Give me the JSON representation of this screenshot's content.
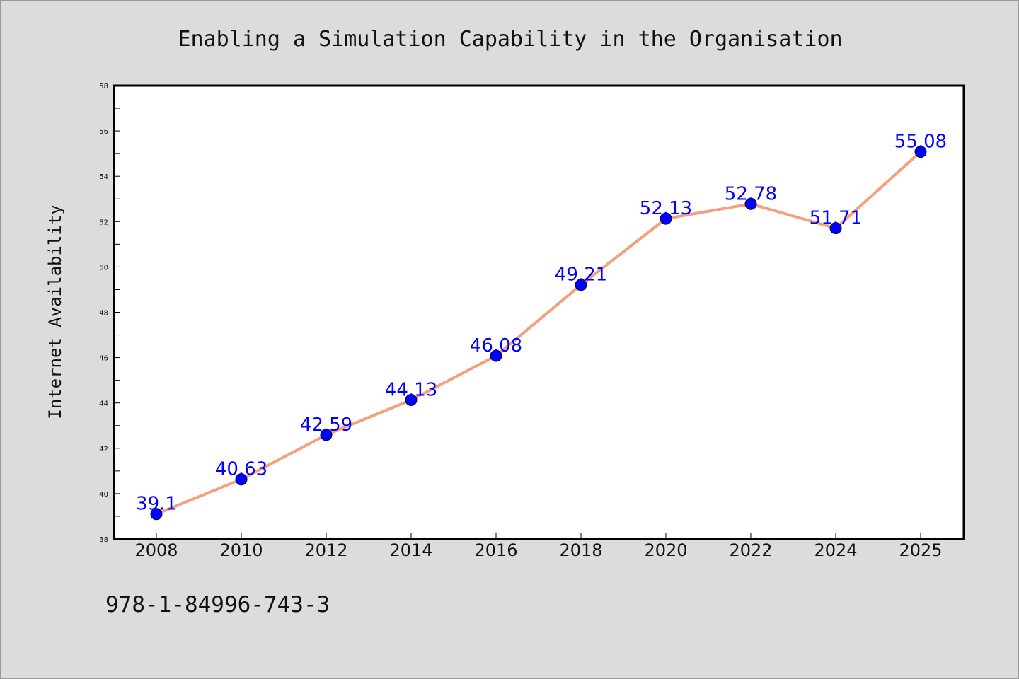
{
  "chart_data": {
    "type": "line",
    "title": "Enabling a Simulation Capability in the Organisation",
    "xlabel": "",
    "ylabel": "Internet Availability",
    "categories": [
      "2008",
      "2010",
      "2012",
      "2014",
      "2016",
      "2018",
      "2020",
      "2022",
      "2024",
      "2025"
    ],
    "series": [
      {
        "values": [
          39.1,
          40.63,
          42.59,
          44.13,
          46.08,
          49.21,
          52.13,
          52.78,
          51.71,
          55.08
        ],
        "data_labels": [
          "39.1",
          "40.63",
          "42.59",
          "44.13",
          "46.08",
          "49.21",
          "52.13",
          "52.78",
          "51.71",
          "55.08"
        ],
        "line_color": "#f5a07c",
        "marker_color": "#0000ff"
      }
    ],
    "ylim": [
      38,
      58
    ],
    "y_ticks": [
      38,
      40,
      42,
      44,
      46,
      48,
      50,
      52,
      54,
      56,
      58
    ],
    "grid": false,
    "legend": "none",
    "label_color": "#0000ff"
  },
  "footer": {
    "code": "978-1-84996-743-3"
  },
  "colors": {
    "background": "#dcdcdc",
    "plot_background": "#ffffff",
    "axis": "#000000"
  }
}
